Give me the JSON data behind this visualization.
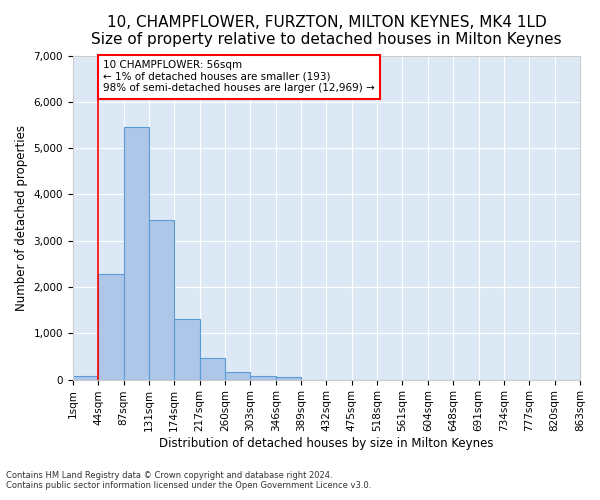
{
  "title": "10, CHAMPFLOWER, FURZTON, MILTON KEYNES, MK4 1LD",
  "subtitle": "Size of property relative to detached houses in Milton Keynes",
  "xlabel": "Distribution of detached houses by size in Milton Keynes",
  "ylabel": "Number of detached properties",
  "footnote1": "Contains HM Land Registry data © Crown copyright and database right 2024.",
  "footnote2": "Contains public sector information licensed under the Open Government Licence v3.0.",
  "annotation_line1": "10 CHAMPFLOWER: 56sqm",
  "annotation_line2": "← 1% of detached houses are smaller (193)",
  "annotation_line3": "98% of semi-detached houses are larger (12,969) →",
  "bar_values": [
    75,
    2280,
    5460,
    3440,
    1310,
    460,
    155,
    85,
    50,
    0,
    0,
    0,
    0,
    0,
    0,
    0,
    0,
    0,
    0,
    0
  ],
  "bar_color": "#aec6e8",
  "bar_edgecolor": "#5b9bd5",
  "background_color": "#dce9f5",
  "grid_color": "#ffffff",
  "x_labels": [
    "1sqm",
    "44sqm",
    "87sqm",
    "131sqm",
    "174sqm",
    "217sqm",
    "260sqm",
    "303sqm",
    "346sqm",
    "389sqm",
    "432sqm",
    "475sqm",
    "518sqm",
    "561sqm",
    "604sqm",
    "648sqm",
    "691sqm",
    "734sqm",
    "777sqm",
    "820sqm",
    "863sqm"
  ],
  "ylim": [
    0,
    7000
  ],
  "yticks": [
    0,
    1000,
    2000,
    3000,
    4000,
    5000,
    6000,
    7000
  ],
  "red_line_x": 1.0,
  "title_fontsize": 11,
  "subtitle_fontsize": 9,
  "axis_label_fontsize": 8.5,
  "tick_fontsize": 7.5
}
